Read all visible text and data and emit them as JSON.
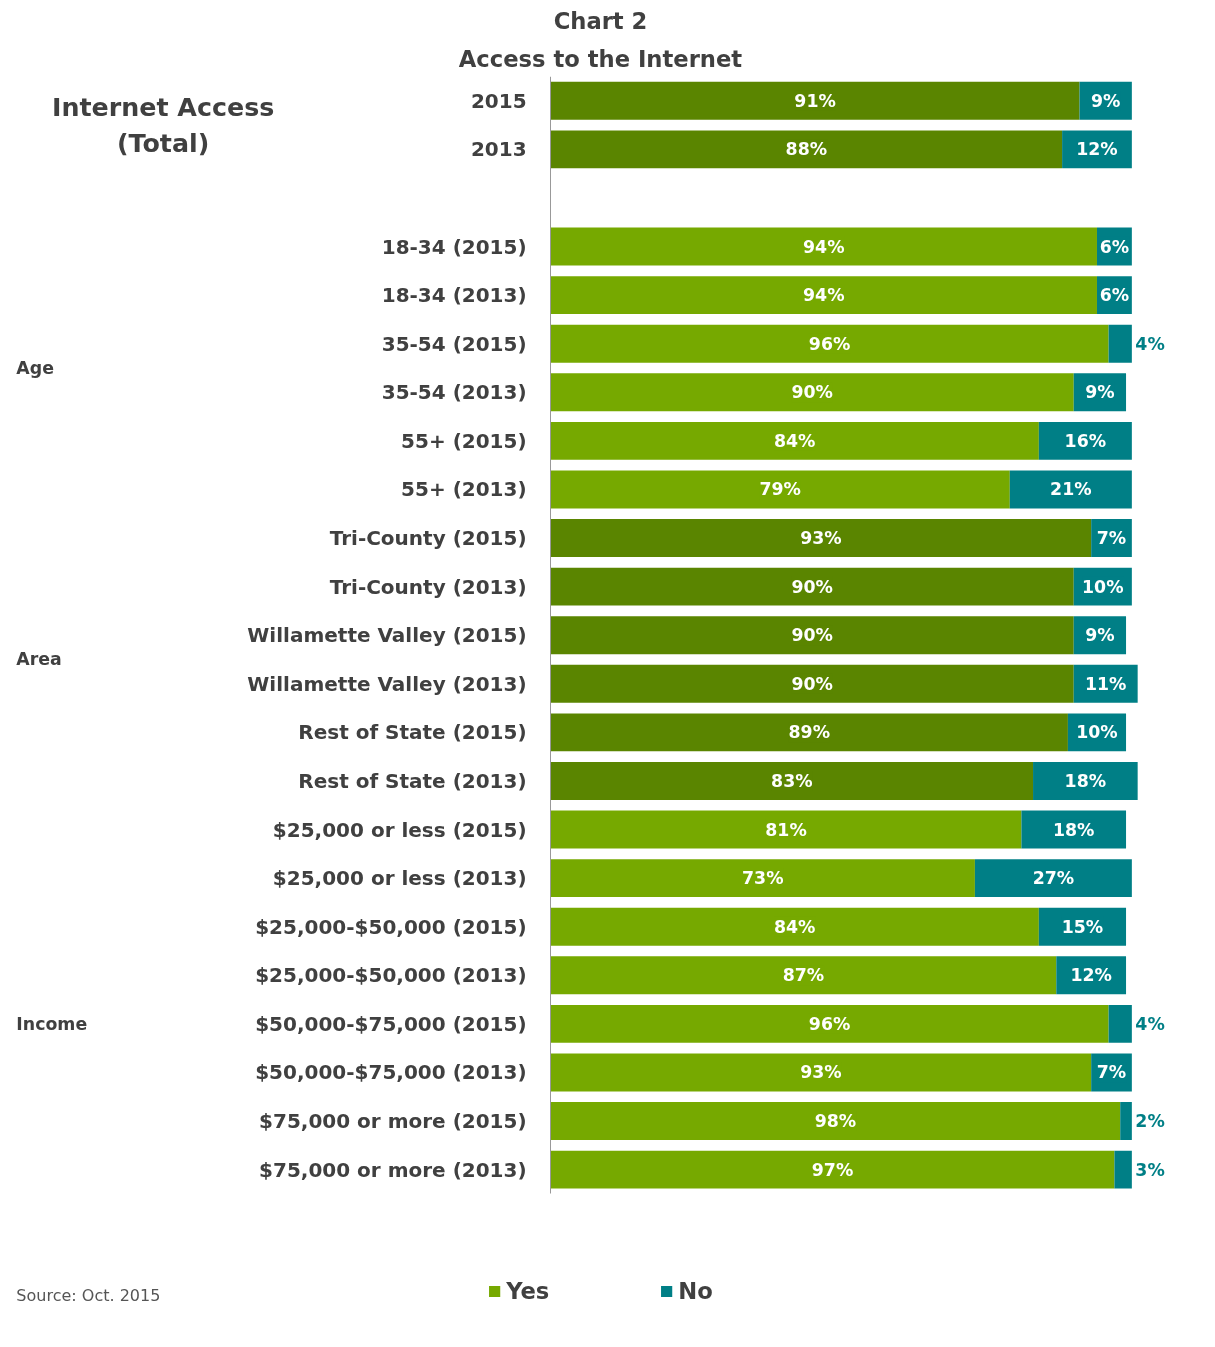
{
  "chart_data": {
    "type": "bar",
    "orientation": "horizontal",
    "stacked": true,
    "title": "Chart 2",
    "subtitle": "Access to the Internet",
    "categories": [
      "2015",
      "2013",
      null,
      "18-34 (2015)",
      "18-34 (2013)",
      "35-54 (2015)",
      "35-54 (2013)",
      "55+ (2015)",
      "55+ (2013)",
      "Tri-County (2015)",
      "Tri-County (2013)",
      "Willamette Valley (2015)",
      "Willamette Valley (2013)",
      "Rest of State (2015)",
      "Rest of State (2013)",
      "$25,000 or less (2015)",
      "$25,000 or less (2013)",
      "$25,000-$50,000 (2015)",
      "$25,000-$50,000 (2013)",
      "$50,000-$75,000 (2015)",
      "$50,000-$75,000 (2013)",
      "$75,000 or more (2015)",
      "$75,000 or more (2013)"
    ],
    "series": [
      {
        "name": "Yes",
        "color": "#76a900",
        "colors": [
          "#5a8500",
          "#5a8500",
          null,
          "#76a900",
          "#76a900",
          "#76a900",
          "#76a900",
          "#76a900",
          "#76a900",
          "#5a8500",
          "#5a8500",
          "#5a8500",
          "#5a8500",
          "#5a8500",
          "#5a8500",
          "#76a900",
          "#76a900",
          "#76a900",
          "#76a900",
          "#76a900",
          "#76a900",
          "#76a900",
          "#76a900"
        ],
        "values": [
          91,
          88,
          null,
          94,
          94,
          96,
          90,
          84,
          79,
          93,
          90,
          90,
          90,
          89,
          83,
          81,
          73,
          84,
          87,
          96,
          93,
          98,
          97
        ],
        "value_labels": [
          "91%",
          "88%",
          null,
          "94%",
          "94%",
          "96%",
          "90%",
          "84%",
          "79%",
          "93%",
          "90%",
          "90%",
          "90%",
          "89%",
          "83%",
          "81%",
          "73%",
          "84%",
          "87%",
          "96%",
          "93%",
          "98%",
          "97%"
        ]
      },
      {
        "name": "No",
        "color": "#007f86",
        "values": [
          9,
          12,
          null,
          6,
          6,
          4,
          9,
          16,
          21,
          7,
          10,
          9,
          11,
          10,
          18,
          18,
          27,
          15,
          12,
          4,
          7,
          2,
          3
        ],
        "value_labels": [
          "9%",
          "12%",
          null,
          "6%",
          "6%",
          "4%",
          "9%",
          "16%",
          "21%",
          "7%",
          "10%",
          "9%",
          "11%",
          "10%",
          "18%",
          "18%",
          "27%",
          "15%",
          "12%",
          "4%",
          "7%",
          "2%",
          "3%"
        ]
      }
    ],
    "data_labels": true,
    "legend": "bottom",
    "annotations": [
      "Internet Access\n(Total)",
      "Age",
      "Area",
      "Income",
      "Source: Oct. 2015"
    ]
  }
}
